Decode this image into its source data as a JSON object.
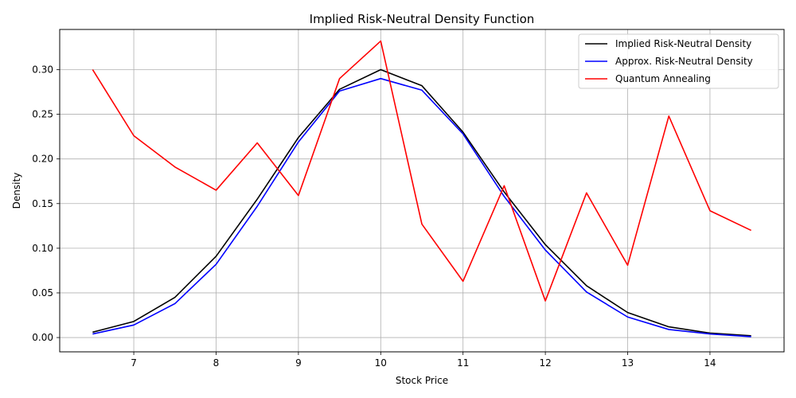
{
  "chart_data": {
    "type": "line",
    "title": "Implied Risk-Neutral Density Function",
    "xlabel": "Stock Price",
    "ylabel": "Density",
    "x": [
      6.5,
      7,
      7.5,
      8,
      8.5,
      9,
      9.5,
      10,
      10.5,
      11,
      11.5,
      12,
      12.5,
      13,
      13.5,
      14,
      14.5
    ],
    "xlim": [
      6.1,
      14.9
    ],
    "ylim": [
      -0.016,
      0.345
    ],
    "xticks": [
      7,
      8,
      9,
      10,
      11,
      12,
      13,
      14
    ],
    "xtick_labels": [
      "7",
      "8",
      "9",
      "10",
      "11",
      "12",
      "13",
      "14"
    ],
    "yticks": [
      0.0,
      0.05,
      0.1,
      0.15,
      0.2,
      0.25,
      0.3
    ],
    "ytick_labels": [
      "0.00",
      "0.05",
      "0.10",
      "0.15",
      "0.20",
      "0.25",
      "0.30"
    ],
    "grid": true,
    "legend_position": "top-right",
    "series": [
      {
        "name": "Implied Risk-Neutral Density",
        "color": "#000000",
        "values": [
          0.006,
          0.018,
          0.045,
          0.091,
          0.155,
          0.224,
          0.278,
          0.3,
          0.282,
          0.23,
          0.163,
          0.104,
          0.058,
          0.028,
          0.012,
          0.005,
          0.002
        ]
      },
      {
        "name": "Approx. Risk-Neutral Density",
        "color": "#0000ff",
        "values": [
          0.004,
          0.014,
          0.038,
          0.082,
          0.147,
          0.219,
          0.276,
          0.29,
          0.277,
          0.228,
          0.158,
          0.098,
          0.051,
          0.023,
          0.009,
          0.004,
          0.001
        ]
      },
      {
        "name": "Quantum Annealing",
        "color": "#ff0000",
        "values": [
          0.3,
          0.226,
          0.191,
          0.165,
          0.218,
          0.159,
          0.29,
          0.332,
          0.127,
          0.063,
          0.17,
          0.041,
          0.162,
          0.081,
          0.248,
          0.142,
          0.12
        ]
      }
    ]
  }
}
